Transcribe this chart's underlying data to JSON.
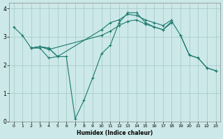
{
  "title": "",
  "xlabel": "Humidex (Indice chaleur)",
  "bg_color": "#cce8e8",
  "line_color": "#1a7a6e",
  "grid_color": "#aacccc",
  "xlim": [
    -0.5,
    23.5
  ],
  "ylim": [
    0,
    4.2
  ],
  "xticks": [
    0,
    1,
    2,
    3,
    4,
    5,
    6,
    7,
    8,
    9,
    10,
    11,
    12,
    13,
    14,
    15,
    16,
    17,
    18,
    19,
    20,
    21,
    22,
    23
  ],
  "yticks": [
    0,
    1,
    2,
    3,
    4
  ],
  "lines": [
    {
      "x": [
        0,
        1,
        2,
        3,
        4,
        5
      ],
      "y": [
        3.35,
        3.05,
        2.6,
        2.6,
        2.25,
        2.3
      ]
    },
    {
      "x": [
        19,
        20,
        21,
        22,
        23
      ],
      "y": [
        3.05,
        2.35,
        2.25,
        1.9,
        1.8
      ]
    },
    {
      "x": [
        2,
        3,
        4,
        5,
        6,
        7,
        8,
        9,
        10,
        11,
        12,
        13,
        14,
        15,
        16,
        17,
        18,
        19,
        20,
        21,
        22,
        23
      ],
      "y": [
        2.6,
        2.65,
        2.6,
        2.3,
        2.3,
        0.1,
        0.75,
        1.55,
        2.4,
        2.7,
        3.5,
        3.85,
        3.85,
        3.5,
        3.35,
        3.25,
        3.55,
        3.05,
        2.35,
        2.25,
        1.9,
        1.8
      ]
    },
    {
      "x": [
        2,
        3,
        4,
        5,
        10,
        11,
        12,
        13,
        14,
        15,
        16,
        17,
        18
      ],
      "y": [
        2.6,
        2.65,
        2.6,
        2.3,
        3.25,
        3.5,
        3.6,
        3.8,
        3.75,
        3.6,
        3.5,
        3.4,
        3.6
      ]
    },
    {
      "x": [
        2,
        3,
        4,
        10,
        11,
        12,
        13,
        14,
        15,
        16,
        17,
        18
      ],
      "y": [
        2.6,
        2.65,
        2.55,
        3.05,
        3.2,
        3.4,
        3.55,
        3.6,
        3.45,
        3.35,
        3.25,
        3.5
      ]
    }
  ]
}
